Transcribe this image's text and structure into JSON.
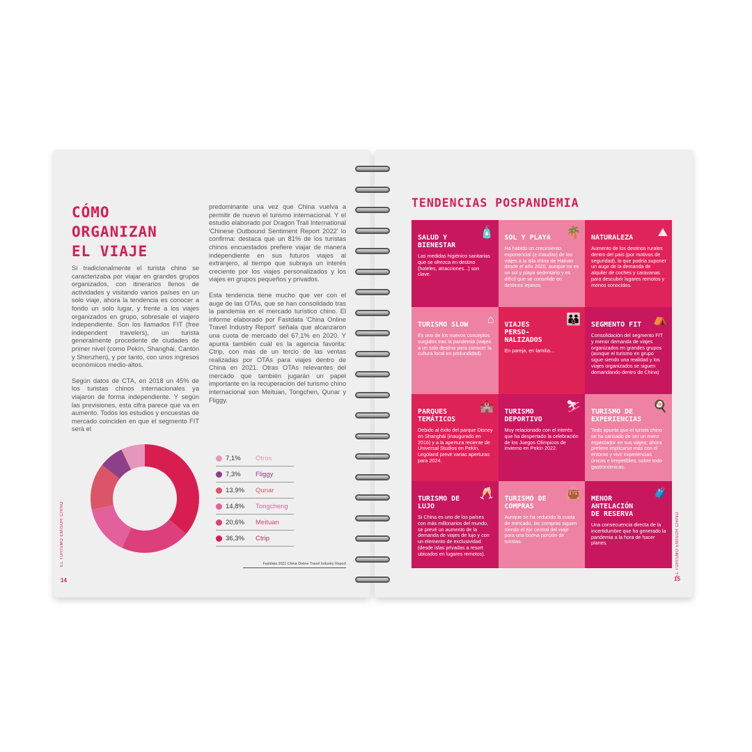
{
  "left_page": {
    "title": [
      "CÓMO",
      "ORGANIZAN",
      "EL VIAJE"
    ],
    "col1": [
      "Si tradicionalmente el turista chino se caracterizaba por viajar en grandes grupos organizados, con itinerarios llenos de actividades y visitando varios países en un solo viaje, ahora la tendencia es conocer a fondo un solo lugar, y frente a los viajes organizados en grupo, sobresale el viajero independiente. Son los llamados FIT (free independent travelers), un turista generalmente procedente de ciudades de primer nivel (como Pekín, Shanghái, Cantón y Shenzhen), y por tanto, con unos ingresos económicos medio-altos.",
      "Según datos de CTA, en 2018 un 45% de los turistas chinos internacionales ya viajaron de forma independiente. Y según las previsiones, esta cifra parece que va en aumento. Todos los estudios y encuestas de mercado coinciden en que el segmento FIT será el"
    ],
    "col2": [
      "predominante una vez que China vuelva a permitir de nuevo el turismo internacional. Y el estudio elaborado por Dragon Trail International 'Chinese Outbound Sentiment Report 2022' lo confirma: destaca que un 81% de los turistas chinos encuestados prefiere viajar de manera independiente en sus futuros viajes al extranjero, al tiempo que subraya un interés creciente por los viajes personalizados y los viajes en grupos pequeños y privados.",
      "Esta tendencia tiene mucho que ver con el auge de las OTAs, que se han consolidado tras la pandemia en el mercado turístico chino. El informe elaborado por Fastdata 'China Online Travel Industry Report' señala que alcanzaron una cuota de mercado del 67,1% en 2020. Y apunta también cuál es la agencia favorita: Ctrip, con más de un tercio de las ventas realizadas por OTAs para viajes dentro de China en 2021. Otras OTAs relevantes del mercado que también jugarán un papel importante en la recuperación del turismo chino internacional son Meituan, Tongchen, Qunar y Fliggy."
    ],
    "source": "Fastdata 2021 China Online Travel Industry Report",
    "side_label": "EL TURISMO EMISOR CHINO",
    "page_number": "14"
  },
  "chart_data": {
    "type": "pie",
    "donut": true,
    "legend_placement": "right",
    "categories": [
      "Ctrip",
      "Meituan",
      "Tongcheng",
      "Qunar",
      "Fliggy",
      "Otros"
    ],
    "values": [
      36.3,
      20.6,
      14.8,
      13.9,
      7.3,
      7.1
    ],
    "labels": [
      "36,3%",
      "20,6%",
      "14,8%",
      "13,9%",
      "7,3%",
      "7,1%"
    ],
    "colors": [
      "#d81e51",
      "#dd3f7c",
      "#e2619c",
      "#dc5468",
      "#8e3f8a",
      "#e597bb"
    ]
  },
  "right_page": {
    "title": "TENDENCIAS POSPANDEMIA",
    "side_label": "EL TURISMO EMISOR CHINO",
    "page_number": "15",
    "cards": [
      {
        "title": "Salud y bienestar",
        "text": "Las medidas higiénico sanitarias que se ofrezca en destino (hoteles, atracciones...) son clave.",
        "icon": "sanitizer-icon",
        "color": "#c8175d"
      },
      {
        "title": "Sol y playa",
        "text": "Ha habido un crecimiento exponencial (e inaudito) de los viajes a la isla china de Hainan desde el año 2020, aunque no es un sol y playa sedentario y es difícil que se consolide en destinos lejanos.",
        "icon": "palm-hammock-icon",
        "color": "#ee82a3"
      },
      {
        "title": "Naturaleza",
        "text": "Aumento de los destinos rurales dentro del país (por motivos de seguridad), lo que podría suponer un auge de la demanda de alquiler de coches y caravanas para descubrir lugares remotos y menos conocidos.",
        "icon": "hiker-icon",
        "color": "#e0245b"
      },
      {
        "title": "Turismo slow",
        "text": "Es uno de los nuevos conceptos surgidos tras la pandemia (viajes a un solo destino para conocer la cultura local en profundidad).",
        "icon": "house-icon",
        "color": "#ee82a3"
      },
      {
        "title": "Viajes perso-nalizados",
        "text": "En pareja, en familia...",
        "icon": "family-icon",
        "color": "#df2256"
      },
      {
        "title": "Segmento FIT",
        "text": "Consolidación del segmento FIT y menor demanda de viajes organizados en grandes grupos (aunque el turismo en grupo sigue siendo una realidad y los viajes organizados se siguen demandando dentro de China)",
        "icon": "tent-icon",
        "color": "#c8175d"
      },
      {
        "title": "Parques temáticos",
        "text": "Debido al éxito del parque Disney en Shanghái (inaugurado en 2016) y a la apertura reciente de Universal Studios en Pekín. Legoland prevé varias aperturas para 2024.",
        "icon": "castle-icon",
        "color": "#de2157"
      },
      {
        "title": "Turismo deportivo",
        "text": "Muy relacionado con el interés que ha despertado la celebración de los Juegos Olímpicos de invierno en Pekín 2022.",
        "icon": "skier-icon",
        "color": "#c8175d"
      },
      {
        "title": "Turismo de experiencias",
        "text": "Todo apunta que el turista chino se ha cansado de ser un mero espectador en sus viajes; ahora prefiere implicarse más con el entorno y vivir experiencias únicas e irrepetibles, sobre todo gastronómicas.",
        "icon": "chef-icon",
        "color": "#ee82a3"
      },
      {
        "title": "Turismo de lujo",
        "text": "Si China es uno de los países con más millonarios del mundo, se prevé un aumento de la demanda de viajes de lujo y con un elemento de exclusividad (desde islas privadas a resort ubicados en lugares remotos).",
        "icon": "luxury-icon",
        "color": "#c8175d"
      },
      {
        "title": "Turismo de compras",
        "text": "Aunque se ha reducido la cuota de mercado, las compras siguen siendo el eje central del viaje para una buena porción de turistas.",
        "icon": "shopping-bag-icon",
        "color": "#ee82a3"
      },
      {
        "title": "Menor antelación de reserva",
        "text": "Una consecuencia directa de la incertidumbre que ha generado la pandemia a la hora de hacer planes.",
        "icon": "traveler-icon",
        "color": "#c8175d"
      }
    ]
  }
}
